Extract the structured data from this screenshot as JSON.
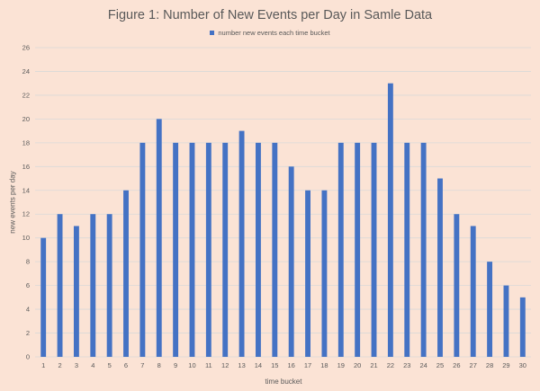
{
  "chart_data": {
    "type": "bar",
    "title": "Figure 1: Number of New Events per Day in Samle Data",
    "xlabel": "time bucket",
    "ylabel": "new events  per day",
    "ylim": [
      0,
      26
    ],
    "yticks": [
      0,
      2,
      4,
      6,
      8,
      10,
      12,
      14,
      16,
      18,
      20,
      22,
      24,
      26
    ],
    "grid": true,
    "legend_position": "top",
    "categories": [
      "1",
      "2",
      "3",
      "4",
      "5",
      "6",
      "7",
      "8",
      "9",
      "10",
      "11",
      "12",
      "13",
      "14",
      "15",
      "16",
      "17",
      "18",
      "19",
      "20",
      "21",
      "22",
      "23",
      "24",
      "25",
      "26",
      "27",
      "28",
      "29",
      "30"
    ],
    "series": [
      {
        "name": "number new events each time bucket",
        "color": "#4472c4",
        "values": [
          10,
          12,
          11,
          12,
          12,
          14,
          18,
          20,
          18,
          18,
          18,
          18,
          19,
          18,
          18,
          16,
          14,
          14,
          18,
          18,
          18,
          23,
          18,
          18,
          15,
          12,
          11,
          8,
          6,
          5
        ]
      }
    ]
  },
  "colors": {
    "background": "#fbe3d5",
    "gridline": "#d9d9d9",
    "bar": "#4472c4"
  }
}
